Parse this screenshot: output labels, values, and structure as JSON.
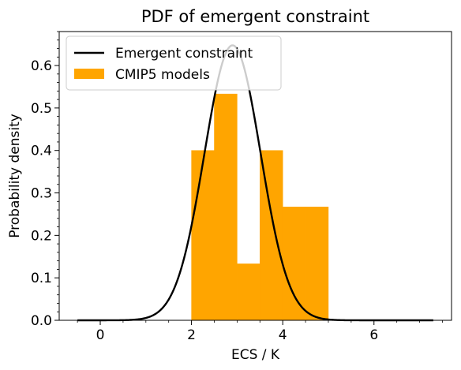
{
  "chart_data": {
    "type": "bar",
    "title": "PDF of emergent constraint",
    "xlabel": "ECS / K",
    "ylabel": "Probability density",
    "xlim": [
      -0.9,
      7.7
    ],
    "ylim": [
      0.0,
      0.68
    ],
    "xticks": [
      0,
      2,
      4,
      6
    ],
    "yticks": [
      0.0,
      0.1,
      0.2,
      0.3,
      0.4,
      0.5,
      0.6
    ],
    "legend_position": "top-left",
    "grid": false,
    "series": [
      {
        "name": "Emergent constraint",
        "type": "line",
        "color": "#000000",
        "mean": 2.9,
        "std": 0.616,
        "x_range": [
          -0.5,
          7.3
        ]
      },
      {
        "name": "CMIP5 models",
        "type": "histogram",
        "color": "#ffa500",
        "bins": [
          {
            "x0": 2.0,
            "x1": 2.5,
            "value": 0.4
          },
          {
            "x0": 2.5,
            "x1": 3.0,
            "value": 0.533
          },
          {
            "x0": 3.0,
            "x1": 3.5,
            "value": 0.133
          },
          {
            "x0": 3.5,
            "x1": 4.0,
            "value": 0.4
          },
          {
            "x0": 4.0,
            "x1": 4.5,
            "value": 0.267
          },
          {
            "x0": 4.5,
            "x1": 5.0,
            "value": 0.267
          }
        ]
      }
    ]
  }
}
